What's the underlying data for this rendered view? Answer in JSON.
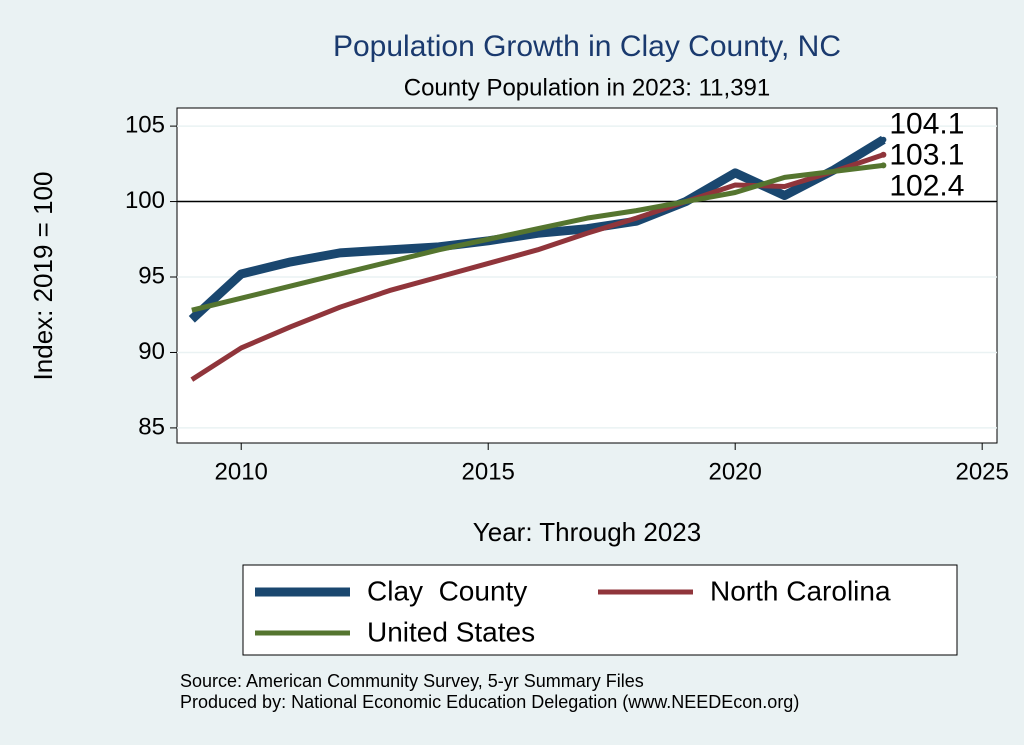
{
  "chart_data": {
    "type": "line",
    "title": "Population Growth in Clay County, NC",
    "subtitle": "County Population in 2023: 11,391",
    "x_label": "Year: Through 2023",
    "y_label": "Index: 2019 = 100",
    "x": [
      2009,
      2010,
      2011,
      2012,
      2013,
      2014,
      2015,
      2016,
      2017,
      2018,
      2019,
      2020,
      2021,
      2022,
      2023
    ],
    "series": [
      {
        "name": "Clay  County",
        "color": "#1a476f",
        "values": [
          92.2,
          95.2,
          96.0,
          96.6,
          96.8,
          97.0,
          97.4,
          97.9,
          98.2,
          98.7,
          100,
          101.9,
          100.4,
          102.1,
          104.1
        ]
      },
      {
        "name": "North Carolina",
        "color": "#90353b",
        "values": [
          88.2,
          90.3,
          91.7,
          93.0,
          94.1,
          95.0,
          95.9,
          96.8,
          97.9,
          98.9,
          100,
          101.1,
          101.0,
          102.0,
          103.1
        ]
      },
      {
        "name": "United States",
        "color": "#55752f",
        "values": [
          92.8,
          93.6,
          94.4,
          95.2,
          96.0,
          96.8,
          97.5,
          98.2,
          98.9,
          99.4,
          100,
          100.6,
          101.6,
          102.0,
          102.4
        ]
      }
    ],
    "xlim": [
      2008.7,
      2025.3
    ],
    "ylim": [
      84.0,
      106.2
    ],
    "xticks": [
      2010,
      2015,
      2020,
      2025
    ],
    "yticks": [
      85,
      90,
      95,
      100,
      105
    ],
    "yline": 100,
    "grid": true,
    "legend_position": "bottom",
    "notes": [
      "Source: American Community Survey, 5-yr Summary Files",
      "Produced by: National Economic Education Delegation (www.NEEDEcon.org)"
    ]
  }
}
